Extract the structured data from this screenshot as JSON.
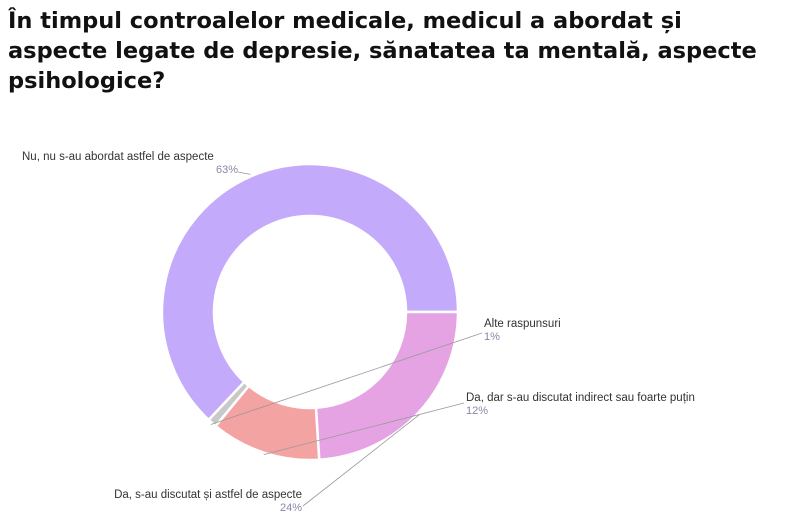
{
  "title": "În timpul controalelor medicale, medicul a abordat și aspecte legate de depresie, sănatatea ta mentală, aspecte psihologice?",
  "chart_data": {
    "type": "pie",
    "donut": true,
    "title": "În timpul controalelor medicale, medicul a abordat și aspecte legate de depresie, sănatatea ta mentală, aspecte psihologice?",
    "slices": [
      {
        "label": "Nu, nu s-au abordat astfel de aspecte",
        "value": 63,
        "value_label": "63%",
        "color": "#c4aafa"
      },
      {
        "label": "Alte raspunsuri",
        "value": 1,
        "value_label": "1%",
        "color": "#c9c9c9"
      },
      {
        "label": "Da, dar s-au discutat indirect sau foarte puțin",
        "value": 12,
        "value_label": "12%",
        "color": "#f4a3a3"
      },
      {
        "label": "Da, s-au discutat și astfel de aspecte",
        "value": 24,
        "value_label": "24%",
        "color": "#e5a3e3"
      }
    ]
  }
}
